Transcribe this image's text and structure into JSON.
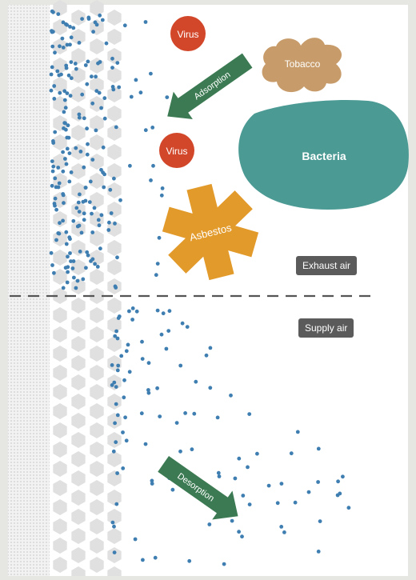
{
  "contaminants": {
    "virus_top": "Virus",
    "virus_mid": "Virus",
    "tobacco": "Tobacco",
    "bacteria": "Bacteria",
    "asbestos": "Asbestos"
  },
  "arrows": {
    "adsorption": "Adsorption",
    "desorption": "Desorption"
  },
  "zones": {
    "exhaust": "Exhaust air",
    "supply": "Supply air"
  },
  "colors": {
    "virus": "#d2472a",
    "tobacco": "#c79c6a",
    "bacteria": "#4b9a94",
    "asbestos": "#e29a2b",
    "arrow": "#3b7a52",
    "particle": "#3f7eb1",
    "chip": "#5b5b5b"
  }
}
